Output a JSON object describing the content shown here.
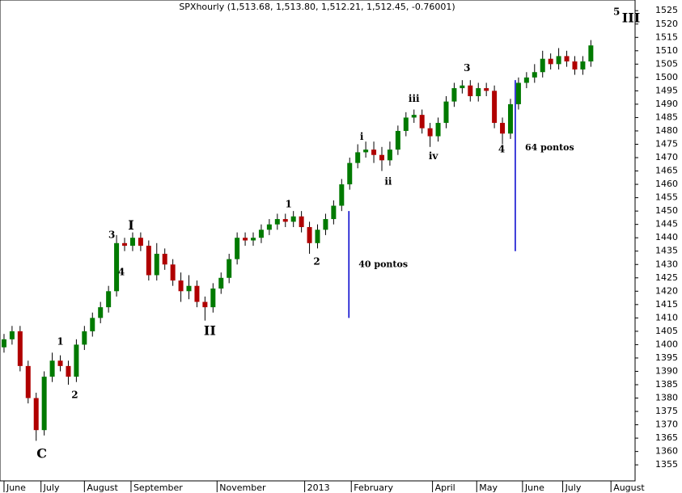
{
  "chart_data": {
    "type": "candlestick",
    "title": "SPXhourly (1,513.68, 1,513.80, 1,512.21, 1,512.45, -0.76001)",
    "x": [
      1,
      2,
      3,
      4,
      5,
      6,
      7,
      8,
      9,
      10,
      11,
      12,
      13,
      14,
      15,
      16,
      17,
      18,
      19,
      20,
      21,
      22,
      23,
      24,
      25,
      26,
      27,
      28,
      29,
      30,
      31,
      32,
      33,
      34,
      35,
      36,
      37,
      38,
      39,
      40,
      41,
      42,
      43,
      44,
      45,
      46,
      47,
      48,
      49,
      50,
      51,
      52,
      53,
      54,
      55,
      56,
      57,
      58,
      59,
      60,
      61,
      62,
      63,
      64,
      65,
      66,
      67,
      68,
      69,
      70,
      71,
      72,
      73,
      74
    ],
    "open": [
      1399,
      1402,
      1405,
      1392,
      1380,
      1368,
      1388,
      1394,
      1392,
      1388,
      1400,
      1405,
      1410,
      1414,
      1420,
      1438,
      1437,
      1440,
      1437,
      1426,
      1434,
      1430,
      1424,
      1420,
      1422,
      1416,
      1414,
      1421,
      1425,
      1432,
      1440,
      1439,
      1440,
      1443,
      1445,
      1447,
      1446,
      1448,
      1444,
      1438,
      1443,
      1447,
      1452,
      1460,
      1468,
      1472,
      1473,
      1471,
      1469,
      1473,
      1480,
      1485,
      1486,
      1481,
      1478,
      1483,
      1491,
      1496,
      1497,
      1493,
      1496,
      1495,
      1483,
      1479,
      1490,
      1498,
      1500,
      1502,
      1507,
      1505,
      1508,
      1506,
      1503,
      1506
    ],
    "high": [
      1404,
      1407,
      1407,
      1394,
      1382,
      1390,
      1397,
      1396,
      1394,
      1402,
      1407,
      1412,
      1416,
      1422,
      1441,
      1440,
      1442,
      1442,
      1439,
      1438,
      1436,
      1432,
      1427,
      1426,
      1424,
      1418,
      1423,
      1427,
      1434,
      1442,
      1442,
      1442,
      1445,
      1447,
      1449,
      1449,
      1450,
      1450,
      1446,
      1445,
      1449,
      1454,
      1462,
      1470,
      1475,
      1476,
      1476,
      1474,
      1476,
      1482,
      1487,
      1488,
      1488,
      1483,
      1485,
      1493,
      1498,
      1499,
      1499,
      1498,
      1498,
      1497,
      1485,
      1492,
      1500,
      1502,
      1505,
      1510,
      1509,
      1511,
      1510,
      1508,
      1508,
      1514
    ],
    "low": [
      1397,
      1400,
      1390,
      1378,
      1364,
      1366,
      1386,
      1390,
      1385,
      1386,
      1398,
      1403,
      1408,
      1412,
      1418,
      1435,
      1435,
      1435,
      1424,
      1424,
      1428,
      1422,
      1416,
      1417,
      1414,
      1409,
      1412,
      1419,
      1423,
      1430,
      1437,
      1437,
      1438,
      1441,
      1443,
      1444,
      1444,
      1442,
      1434,
      1436,
      1441,
      1445,
      1450,
      1458,
      1466,
      1470,
      1468,
      1465,
      1467,
      1471,
      1478,
      1483,
      1479,
      1474,
      1476,
      1481,
      1489,
      1494,
      1491,
      1491,
      1493,
      1481,
      1475,
      1477,
      1488,
      1496,
      1498,
      1500,
      1503,
      1503,
      1504,
      1501,
      1501,
      1504
    ],
    "close": [
      1402,
      1405,
      1392,
      1380,
      1368,
      1388,
      1394,
      1392,
      1388,
      1400,
      1405,
      1410,
      1414,
      1420,
      1438,
      1437,
      1440,
      1437,
      1426,
      1434,
      1430,
      1424,
      1420,
      1422,
      1416,
      1414,
      1421,
      1425,
      1432,
      1440,
      1439,
      1440,
      1443,
      1445,
      1447,
      1446,
      1448,
      1444,
      1438,
      1443,
      1447,
      1452,
      1460,
      1468,
      1472,
      1473,
      1471,
      1469,
      1473,
      1480,
      1485,
      1486,
      1481,
      1478,
      1483,
      1491,
      1496,
      1497,
      1493,
      1496,
      1495,
      1483,
      1479,
      1490,
      1498,
      1500,
      1502,
      1507,
      1505,
      1508,
      1506,
      1503,
      1506,
      1512
    ],
    "up_color": "#007a00",
    "down_color": "#b00000",
    "xlim": [
      0.5,
      79.5
    ],
    "ylim": [
      1349,
      1529
    ],
    "xticks": [
      {
        "value": 1,
        "label": "June"
      },
      {
        "value": 5.6,
        "label": "July"
      },
      {
        "value": 11,
        "label": "August"
      },
      {
        "value": 16.8,
        "label": "September"
      },
      {
        "value": 27.5,
        "label": "November"
      },
      {
        "value": 38.4,
        "label": "2013"
      },
      {
        "value": 44.2,
        "label": "February"
      },
      {
        "value": 54.3,
        "label": "April"
      },
      {
        "value": 59.8,
        "label": "May"
      },
      {
        "value": 65.5,
        "label": "June"
      },
      {
        "value": 70.5,
        "label": "July"
      },
      {
        "value": 76.5,
        "label": "August"
      }
    ],
    "yticks": [
      1355,
      1360,
      1365,
      1370,
      1375,
      1380,
      1385,
      1390,
      1395,
      1400,
      1405,
      1410,
      1415,
      1420,
      1425,
      1430,
      1435,
      1440,
      1445,
      1450,
      1455,
      1460,
      1465,
      1470,
      1475,
      1480,
      1485,
      1490,
      1495,
      1500,
      1505,
      1510,
      1515,
      1520,
      1525
    ],
    "annotations": [
      {
        "text": "C",
        "x": 5.7,
        "y": 1359,
        "size": "big"
      },
      {
        "text": "1",
        "x": 8.0,
        "y": 1401
      },
      {
        "text": "2",
        "x": 9.8,
        "y": 1381
      },
      {
        "text": "3",
        "x": 14.4,
        "y": 1441
      },
      {
        "text": "4",
        "x": 15.6,
        "y": 1427
      },
      {
        "text": "I",
        "x": 16.8,
        "y": 1444.5,
        "size": "big"
      },
      {
        "text": "II",
        "x": 26.6,
        "y": 1405,
        "size": "big"
      },
      {
        "text": "1",
        "x": 36.4,
        "y": 1452.5
      },
      {
        "text": "2",
        "x": 39.9,
        "y": 1431
      },
      {
        "text": "i",
        "x": 45.5,
        "y": 1477.7
      },
      {
        "text": "ii",
        "x": 48.8,
        "y": 1461
      },
      {
        "text": "iii",
        "x": 52,
        "y": 1492
      },
      {
        "text": "iv",
        "x": 54.4,
        "y": 1470.4
      },
      {
        "text": "3",
        "x": 58.6,
        "y": 1503.4
      },
      {
        "text": "4",
        "x": 62.9,
        "y": 1473
      },
      {
        "text": "5",
        "x": 77.2,
        "y": 1524.4
      },
      {
        "text": "III",
        "x": 79,
        "y": 1522,
        "size": "big"
      }
    ],
    "measures": [
      {
        "x": 43.9,
        "y0": 1410,
        "y1": 1450,
        "label": "40 pontos"
      },
      {
        "x": 64.6,
        "y0": 1435,
        "y1": 1499,
        "label": "64 pontos"
      }
    ],
    "measure_color": "#0000cc"
  }
}
